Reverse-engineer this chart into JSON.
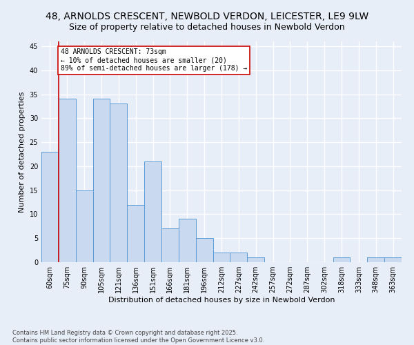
{
  "title1": "48, ARNOLDS CRESCENT, NEWBOLD VERDON, LEICESTER, LE9 9LW",
  "title2": "Size of property relative to detached houses in Newbold Verdon",
  "xlabel": "Distribution of detached houses by size in Newbold Verdon",
  "ylabel": "Number of detached properties",
  "categories": [
    "60sqm",
    "75sqm",
    "90sqm",
    "105sqm",
    "121sqm",
    "136sqm",
    "151sqm",
    "166sqm",
    "181sqm",
    "196sqm",
    "212sqm",
    "227sqm",
    "242sqm",
    "257sqm",
    "272sqm",
    "287sqm",
    "302sqm",
    "318sqm",
    "333sqm",
    "348sqm",
    "363sqm"
  ],
  "values": [
    23,
    34,
    15,
    34,
    33,
    12,
    21,
    7,
    9,
    5,
    2,
    2,
    1,
    0,
    0,
    0,
    0,
    1,
    0,
    1,
    1
  ],
  "bar_color": "#c9d9f0",
  "bar_edge_color": "#5b9bd5",
  "vline_x_index": 0.5,
  "vline_color": "#cc0000",
  "annotation_title": "48 ARNOLDS CRESCENT: 73sqm",
  "annotation_line1": "← 10% of detached houses are smaller (20)",
  "annotation_line2": "89% of semi-detached houses are larger (178) →",
  "annotation_box_color": "#cc0000",
  "ylim": [
    0,
    46
  ],
  "yticks": [
    0,
    5,
    10,
    15,
    20,
    25,
    30,
    35,
    40,
    45
  ],
  "footnote1": "Contains HM Land Registry data © Crown copyright and database right 2025.",
  "footnote2": "Contains public sector information licensed under the Open Government Licence v3.0.",
  "bg_color": "#e8eef8",
  "plot_bg_color": "#e8eef8",
  "grid_color": "#ffffff",
  "title_fontsize": 10,
  "subtitle_fontsize": 9,
  "axis_label_fontsize": 8,
  "tick_fontsize": 7,
  "annotation_fontsize": 7
}
